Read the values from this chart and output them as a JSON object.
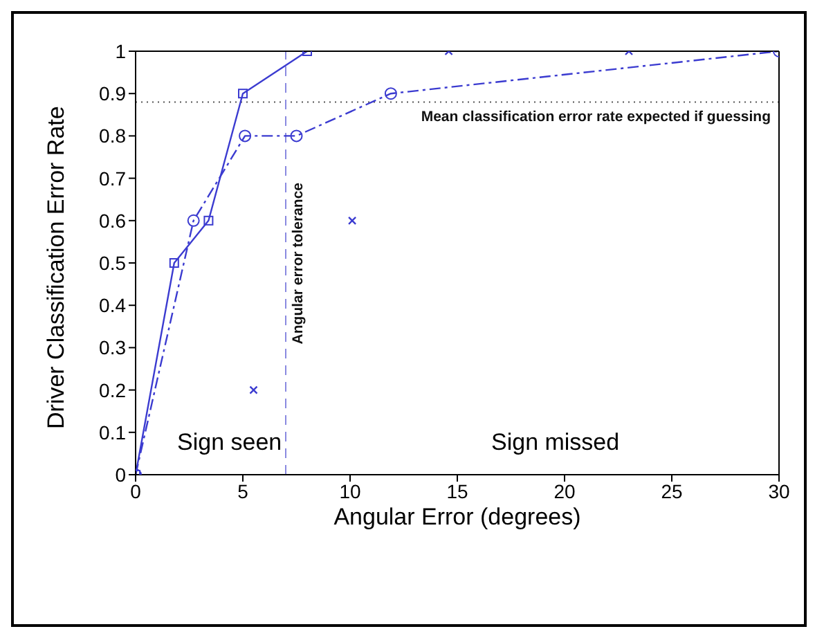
{
  "chart_data": {
    "type": "line",
    "xlabel": "Angular Error (degrees)",
    "ylabel": "Driver Classification Error Rate",
    "xlim": [
      0,
      30
    ],
    "xticks": [
      0,
      5,
      10,
      15,
      20,
      25,
      30
    ],
    "ylim": [
      0,
      1
    ],
    "yticks": [
      0,
      0.1,
      0.2,
      0.3,
      0.4,
      0.5,
      0.6,
      0.7,
      0.8,
      0.9,
      1
    ],
    "grid": false,
    "legend": false,
    "series": [
      {
        "color": "#3b3bd0",
        "marker": "square",
        "line_style": "solid",
        "x": [
          0,
          1.8,
          3.4,
          5,
          8
        ],
        "values": [
          0,
          0.5,
          0.6,
          0.9,
          1
        ]
      },
      {
        "color": "#3b3bd0",
        "marker": "circle",
        "line_style": "dashdot",
        "x": [
          0,
          2.7,
          5.1,
          7.5,
          11.9,
          30
        ],
        "values": [
          0,
          0.6,
          0.8,
          0.8,
          0.9,
          1
        ]
      },
      {
        "type": "scatter",
        "color": "#3b3bd0",
        "marker": "cross",
        "x": [
          5.5,
          10.1,
          14.6,
          23
        ],
        "values": [
          0.2,
          0.6,
          1,
          1
        ]
      }
    ],
    "ref_lines": [
      {
        "axis": "y",
        "value": 0.88,
        "label": "Mean classification error rate expected if guessing",
        "color": "#555555",
        "line_style": "dotted"
      },
      {
        "axis": "x",
        "value": 7,
        "label": "Angular error tolerance",
        "color": "#8a8ae0",
        "line_style": "dashed"
      }
    ],
    "annotations": [
      "Sign seen",
      "Sign missed"
    ]
  }
}
